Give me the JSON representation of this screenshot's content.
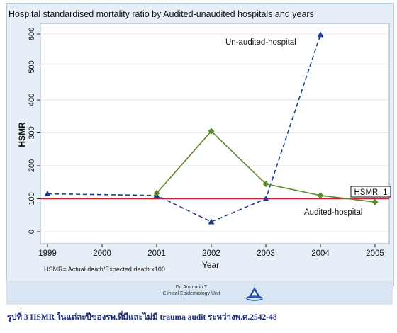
{
  "chart_data": {
    "type": "line",
    "title": "Hospital standardised mortality ratio by Audited-unaudited hospitals and years",
    "xlabel": "Year",
    "ylabel": "HSMR",
    "x_ticks": [
      "1999",
      "2000",
      "2001",
      "2002",
      "2003",
      "2004",
      "2005"
    ],
    "y_ticks": [
      0,
      100,
      200,
      300,
      400,
      500,
      600
    ],
    "xlim": [
      1999,
      2005
    ],
    "ylim": [
      0,
      620
    ],
    "grid": "horizontal",
    "series": [
      {
        "name": "Un-audited-hospital",
        "color": "#1f3a93",
        "style": "dashed",
        "marker": "triangle",
        "points": [
          {
            "x": 1999,
            "y": 115
          },
          {
            "x": 2001,
            "y": 110
          },
          {
            "x": 2002,
            "y": 30
          },
          {
            "x": 2003,
            "y": 100
          },
          {
            "x": 2004,
            "y": 598
          }
        ]
      },
      {
        "name": "Audited-hospital",
        "color": "#5a8a2a",
        "style": "solid",
        "marker": "diamond",
        "points": [
          {
            "x": 2001,
            "y": 117
          },
          {
            "x": 2002,
            "y": 305
          },
          {
            "x": 2003,
            "y": 145
          },
          {
            "x": 2004,
            "y": 110
          },
          {
            "x": 2005,
            "y": 90
          }
        ]
      }
    ],
    "reference_line": {
      "y": 100,
      "label": "HSMR=1",
      "color": "#d02030"
    },
    "footnote": "HSMR= Actual death/Expected death x100"
  },
  "footer": {
    "author": "Dr. Ammarin T",
    "unit": "Clinical Epidemiology Unit",
    "logo_icon": "institution-logo-icon"
  },
  "caption": "รูปที่ 3 HSMR ในแต่ละปีของรพ.ที่มีและไม่มี trauma audit ระหว่างพ.ศ.2542-48"
}
